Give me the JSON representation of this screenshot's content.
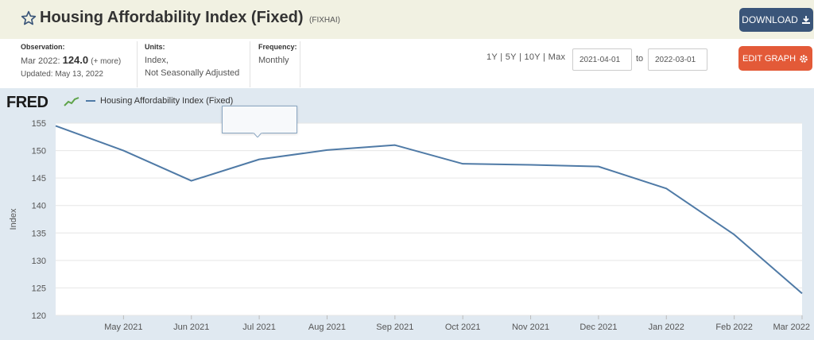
{
  "header": {
    "title": "Housing Affordability Index (Fixed)",
    "series_id": "(FIXHAI)",
    "download_label": "DOWNLOAD"
  },
  "meta": {
    "observation_label": "Observation:",
    "observation_date": "Mar 2022:",
    "observation_value": "124.0",
    "observation_more": "(+ more)",
    "updated": "Updated: May 13, 2022",
    "units_label": "Units:",
    "units_line1": "Index,",
    "units_line2": "Not Seasonally Adjusted",
    "frequency_label": "Frequency:",
    "frequency_value": "Monthly"
  },
  "controls": {
    "ranges": [
      "1Y",
      "5Y",
      "10Y",
      "Max"
    ],
    "date_from": "2021-04-01",
    "to_label": "to",
    "date_to": "2022-03-01",
    "edit_label": "EDIT GRAPH"
  },
  "brand": {
    "logo": "FRED"
  },
  "colors": {
    "line": "#4f7aa6",
    "download": "#3a5579",
    "edit": "#e35a38",
    "chart_bg": "#e0e9f1"
  },
  "chart_data": {
    "type": "line",
    "title": "",
    "xlabel": "",
    "ylabel": "Index",
    "ylim": [
      120,
      155
    ],
    "yticks": [
      120,
      125,
      130,
      135,
      140,
      145,
      150,
      155
    ],
    "grid": true,
    "legend": "top-left",
    "x": [
      "2021-04",
      "2021-05",
      "2021-06",
      "2021-07",
      "2021-08",
      "2021-09",
      "2021-10",
      "2021-11",
      "2021-12",
      "2022-01",
      "2022-02",
      "2022-03"
    ],
    "xtick_labels": [
      "May 2021",
      "Jun 2021",
      "Jul 2021",
      "Aug 2021",
      "Sep 2021",
      "Oct 2021",
      "Nov 2021",
      "Dec 2021",
      "Jan 2022",
      "Feb 2022",
      "Mar 2022"
    ],
    "series": [
      {
        "name": "Housing Affordability Index (Fixed)",
        "values": [
          154.5,
          150.0,
          144.5,
          148.4,
          150.1,
          151.0,
          147.6,
          147.4,
          147.1,
          143.1,
          134.7,
          124.0
        ]
      }
    ]
  }
}
